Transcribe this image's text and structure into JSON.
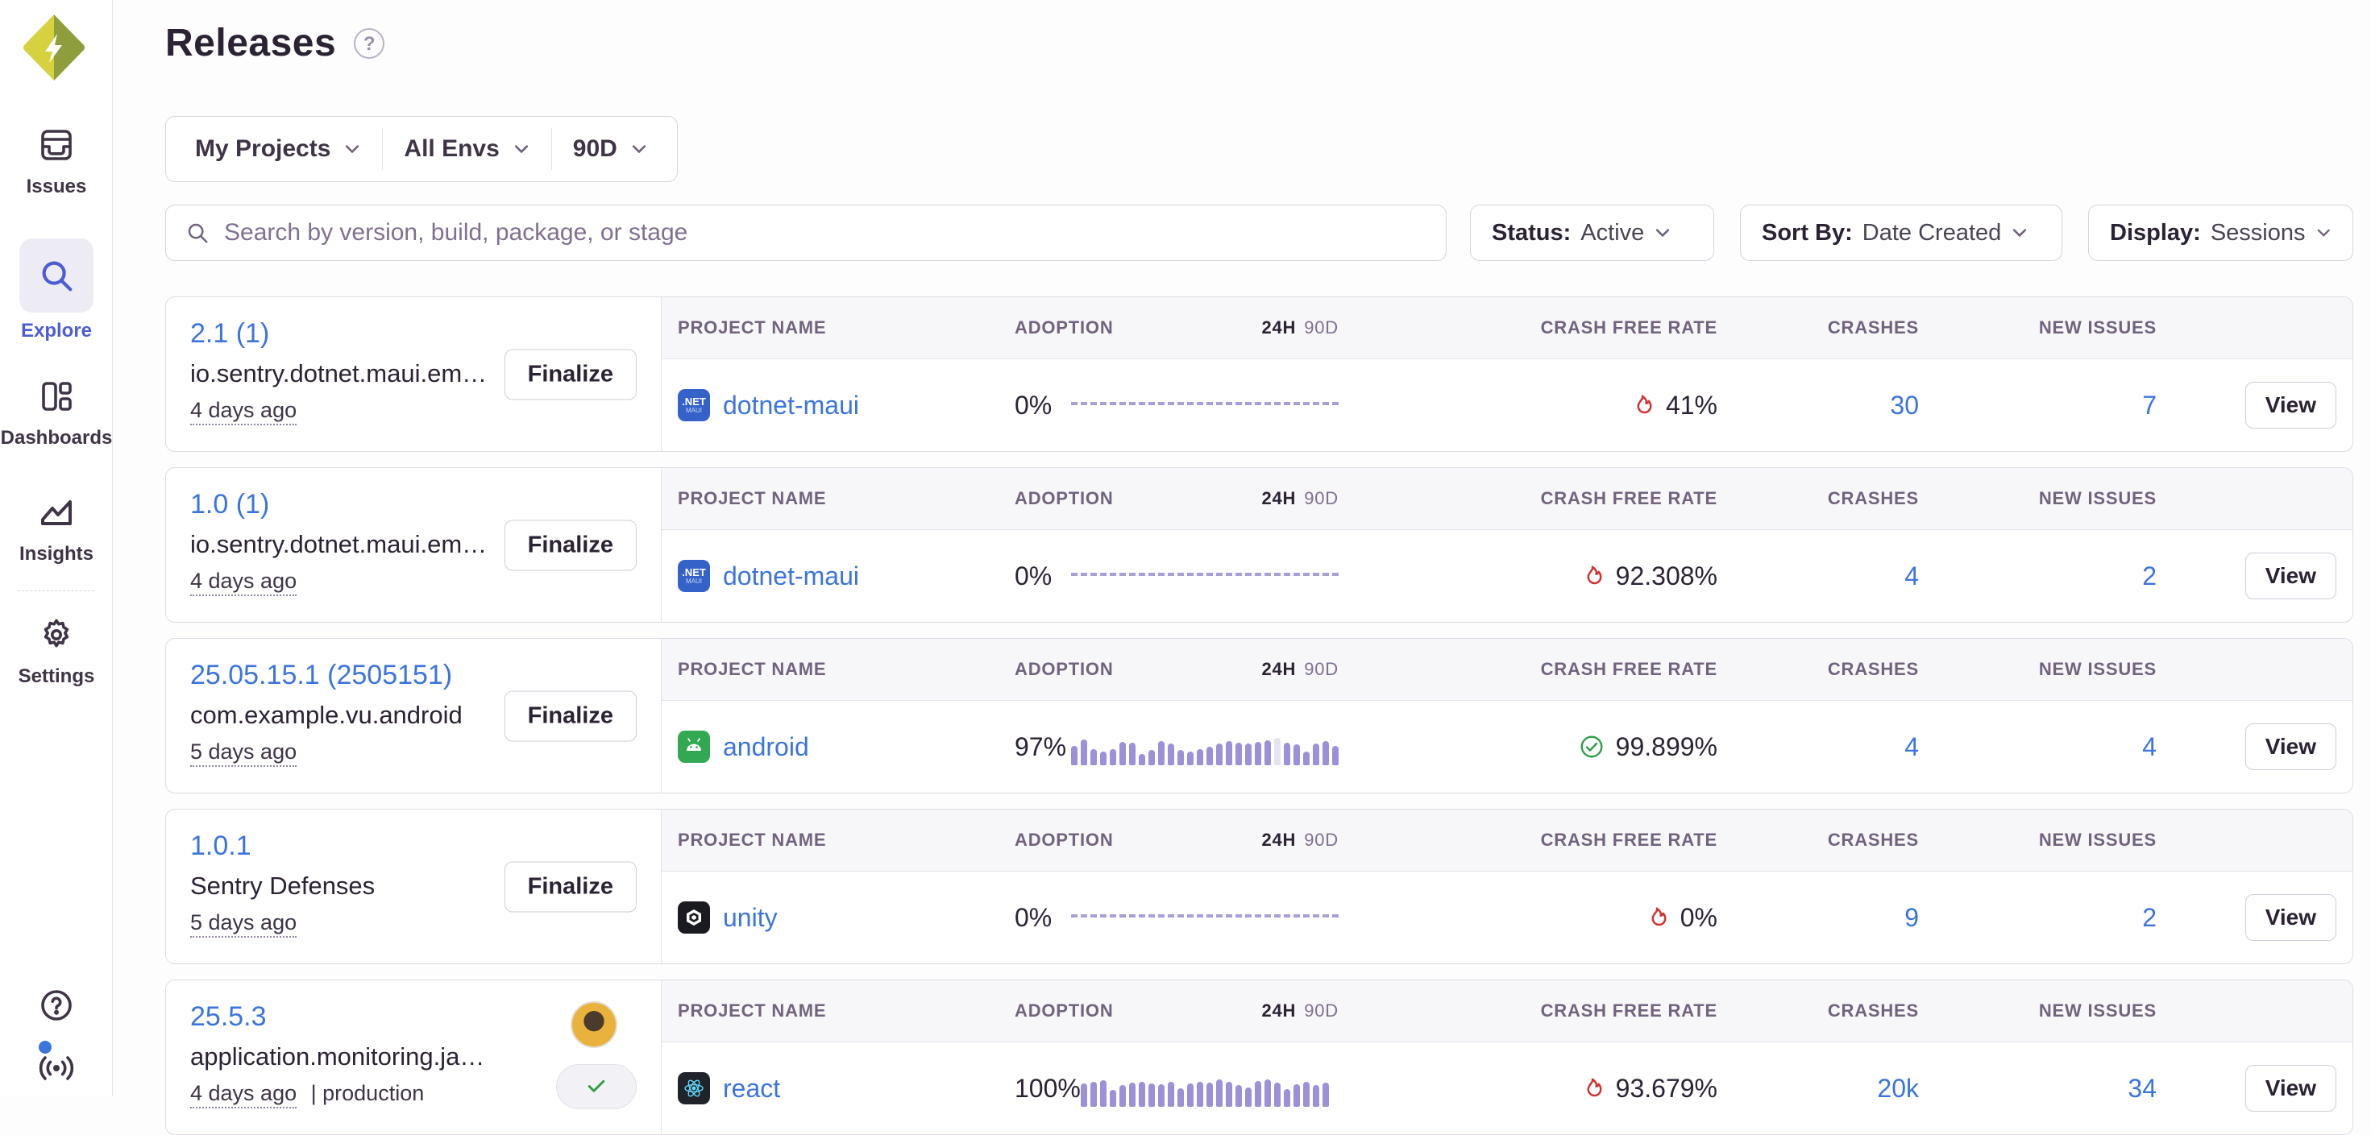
{
  "colors": {
    "accent_blue": "#3c74dd",
    "bar_purple": "#9c90d9",
    "dash_purple": "#a79fd9",
    "crash_red": "#cf3332",
    "healthy_green": "#2f9e44",
    "active_nav": "#4e5cd4",
    "logo_light": "#d6d13f",
    "logo_dark": "#8f9e3c"
  },
  "sidebar": {
    "items": [
      {
        "label": "Issues"
      },
      {
        "label": "Explore",
        "active": true
      },
      {
        "label": "Dashboards"
      },
      {
        "label": "Insights"
      },
      {
        "label": "Settings"
      }
    ]
  },
  "header": {
    "title": "Releases",
    "help_glyph": "?"
  },
  "filters": {
    "project": "My Projects",
    "env": "All Envs",
    "period": "90D",
    "search_placeholder": "Search by version, build, package, or stage",
    "status_label": "Status:",
    "status_value": "Active",
    "sort_label": "Sort By:",
    "sort_value": "Date Created",
    "display_label": "Display:",
    "display_value": "Sessions"
  },
  "table_headers": {
    "project": "PROJECT NAME",
    "adoption": "ADOPTION",
    "h24": "24H",
    "d90": "90D",
    "crash_free": "CRASH FREE RATE",
    "crashes": "CRASHES",
    "new_issues": "NEW ISSUES"
  },
  "icon_text": {
    "dotnet_top": ".NET",
    "dotnet_bottom": "MAUI"
  },
  "releases": [
    {
      "version": "2.1 (1)",
      "package": "io.sentry.dotnet.maui.em…",
      "age": "4 days ago",
      "action_label": "Finalize",
      "project": "dotnet-maui",
      "adoption": "0%",
      "crash_free": "41%",
      "crashes": "30",
      "new_issues": "7",
      "view_label": "View"
    },
    {
      "version": "1.0 (1)",
      "package": "io.sentry.dotnet.maui.em…",
      "age": "4 days ago",
      "action_label": "Finalize",
      "project": "dotnet-maui",
      "adoption": "0%",
      "crash_free": "92.308%",
      "crashes": "4",
      "new_issues": "2",
      "view_label": "View"
    },
    {
      "version": "25.05.15.1 (2505151)",
      "package": "com.example.vu.android",
      "age": "5 days ago",
      "action_label": "Finalize",
      "project": "android",
      "adoption": "97%",
      "bars": {
        "values": [
          0.72,
          0.95,
          0.6,
          0.5,
          0.58,
          0.85,
          0.82,
          0.42,
          0.55,
          0.88,
          0.8,
          0.55,
          0.5,
          0.58,
          0.68,
          0.78,
          0.88,
          0.82,
          0.78,
          0.85,
          0.9,
          1.0,
          0.82,
          0.75,
          0.5,
          0.8,
          0.88,
          0.72
        ],
        "highlight": 21
      },
      "crash_free": "99.899%",
      "crashes": "4",
      "new_issues": "4",
      "view_label": "View"
    },
    {
      "version": "1.0.1",
      "package": "Sentry Defenses",
      "age": "5 days ago",
      "action_label": "Finalize",
      "project": "unity",
      "adoption": "0%",
      "crash_free": "0%",
      "crashes": "9",
      "new_issues": "2",
      "view_label": "View"
    },
    {
      "version": "25.5.3",
      "package": "application.monitoring.ja…",
      "age": "4 days ago",
      "env_meta": "| production",
      "project": "react",
      "adoption": "100%",
      "bars": {
        "values": [
          0.85,
          0.92,
          0.98,
          0.62,
          0.78,
          0.88,
          0.92,
          0.85,
          0.82,
          0.9,
          0.68,
          0.85,
          0.92,
          0.88,
          1.0,
          0.92,
          0.78,
          0.7,
          0.95,
          1.0,
          0.88,
          0.65,
          0.82,
          0.92,
          0.8,
          0.88
        ],
        "highlight": -1
      },
      "crash_free": "93.679%",
      "crashes": "20k",
      "new_issues": "34",
      "view_label": "View"
    }
  ]
}
